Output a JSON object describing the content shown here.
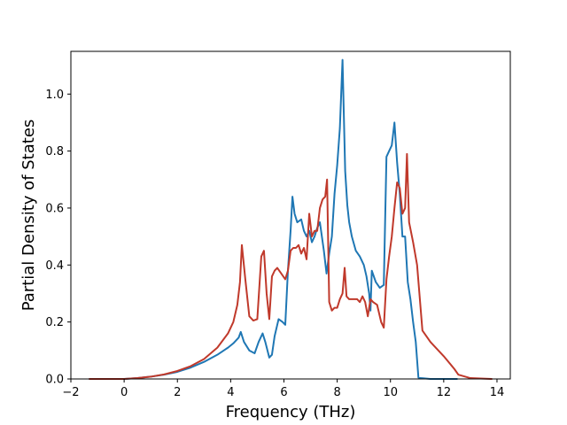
{
  "chart_data": {
    "type": "line",
    "title": "",
    "xlabel": "Frequency (THz)",
    "ylabel": "Partial Density of States",
    "xlim": [
      -2,
      14.5
    ],
    "ylim": [
      0.0,
      1.15
    ],
    "xticks": [
      -2,
      0,
      2,
      4,
      6,
      8,
      10,
      12,
      14
    ],
    "xtick_labels": [
      "−2",
      "0",
      "2",
      "4",
      "6",
      "8",
      "10",
      "12",
      "14"
    ],
    "yticks": [
      0.0,
      0.2,
      0.4,
      0.6,
      0.8,
      1.0
    ],
    "ytick_labels": [
      "0.0",
      "0.2",
      "0.4",
      "0.6",
      "0.8",
      "1.0"
    ],
    "grid": false,
    "legend": false,
    "series": [
      {
        "color": "#1f77b4",
        "x": [
          -1.3,
          0.0,
          0.5,
          1.0,
          1.5,
          2.0,
          2.5,
          3.0,
          3.5,
          3.9,
          4.1,
          4.3,
          4.38,
          4.5,
          4.7,
          4.9,
          5.05,
          5.2,
          5.3,
          5.45,
          5.55,
          5.65,
          5.8,
          5.95,
          6.05,
          6.15,
          6.25,
          6.32,
          6.4,
          6.5,
          6.65,
          6.75,
          6.85,
          6.95,
          7.05,
          7.15,
          7.25,
          7.35,
          7.5,
          7.6,
          7.7,
          7.8,
          7.9,
          8.0,
          8.1,
          8.2,
          8.3,
          8.38,
          8.45,
          8.55,
          8.7,
          8.85,
          9.0,
          9.1,
          9.2,
          9.25,
          9.3,
          9.45,
          9.6,
          9.75,
          9.85,
          9.95,
          10.05,
          10.15,
          10.25,
          10.35,
          10.45,
          10.55,
          10.65,
          10.75,
          10.85,
          10.95,
          11.05,
          11.15,
          11.5,
          12.0,
          12.5
        ],
        "y": [
          0.0,
          0.0,
          0.003,
          0.008,
          0.015,
          0.025,
          0.04,
          0.06,
          0.085,
          0.11,
          0.125,
          0.145,
          0.165,
          0.13,
          0.1,
          0.09,
          0.13,
          0.16,
          0.13,
          0.075,
          0.085,
          0.15,
          0.21,
          0.2,
          0.19,
          0.38,
          0.52,
          0.64,
          0.58,
          0.55,
          0.56,
          0.52,
          0.5,
          0.52,
          0.48,
          0.5,
          0.53,
          0.55,
          0.45,
          0.37,
          0.44,
          0.5,
          0.65,
          0.75,
          0.88,
          1.12,
          0.73,
          0.61,
          0.55,
          0.5,
          0.45,
          0.43,
          0.4,
          0.36,
          0.3,
          0.24,
          0.38,
          0.34,
          0.32,
          0.33,
          0.78,
          0.8,
          0.82,
          0.9,
          0.76,
          0.65,
          0.5,
          0.5,
          0.34,
          0.28,
          0.2,
          0.13,
          0.005,
          0.003,
          0.0,
          0.0,
          0.0
        ]
      },
      {
        "color": "#c0392b",
        "x": [
          -1.3,
          0.0,
          0.5,
          1.0,
          1.5,
          2.0,
          2.5,
          3.0,
          3.5,
          3.9,
          4.1,
          4.25,
          4.35,
          4.42,
          4.55,
          4.7,
          4.85,
          5.0,
          5.15,
          5.25,
          5.35,
          5.45,
          5.55,
          5.65,
          5.75,
          5.9,
          6.05,
          6.15,
          6.25,
          6.35,
          6.45,
          6.55,
          6.65,
          6.75,
          6.85,
          6.95,
          7.05,
          7.15,
          7.25,
          7.35,
          7.45,
          7.55,
          7.62,
          7.7,
          7.8,
          7.9,
          8.0,
          8.1,
          8.2,
          8.28,
          8.35,
          8.45,
          8.6,
          8.75,
          8.85,
          8.95,
          9.05,
          9.15,
          9.25,
          9.35,
          9.5,
          9.65,
          9.75,
          9.85,
          9.95,
          10.05,
          10.15,
          10.25,
          10.35,
          10.45,
          10.55,
          10.62,
          10.7,
          10.85,
          11.0,
          11.2,
          11.5,
          12.0,
          12.4,
          12.55,
          13.0,
          13.8
        ],
        "y": [
          0.0,
          0.0,
          0.003,
          0.008,
          0.016,
          0.028,
          0.045,
          0.07,
          0.11,
          0.16,
          0.2,
          0.26,
          0.34,
          0.47,
          0.35,
          0.22,
          0.205,
          0.21,
          0.43,
          0.45,
          0.3,
          0.21,
          0.36,
          0.38,
          0.39,
          0.37,
          0.35,
          0.38,
          0.45,
          0.46,
          0.46,
          0.47,
          0.44,
          0.46,
          0.42,
          0.58,
          0.5,
          0.52,
          0.52,
          0.6,
          0.63,
          0.64,
          0.7,
          0.27,
          0.24,
          0.25,
          0.25,
          0.28,
          0.3,
          0.39,
          0.29,
          0.28,
          0.28,
          0.28,
          0.27,
          0.29,
          0.27,
          0.22,
          0.28,
          0.27,
          0.26,
          0.2,
          0.18,
          0.35,
          0.43,
          0.5,
          0.6,
          0.69,
          0.67,
          0.58,
          0.6,
          0.79,
          0.55,
          0.48,
          0.4,
          0.17,
          0.13,
          0.08,
          0.035,
          0.015,
          0.003,
          0.0
        ]
      }
    ]
  }
}
